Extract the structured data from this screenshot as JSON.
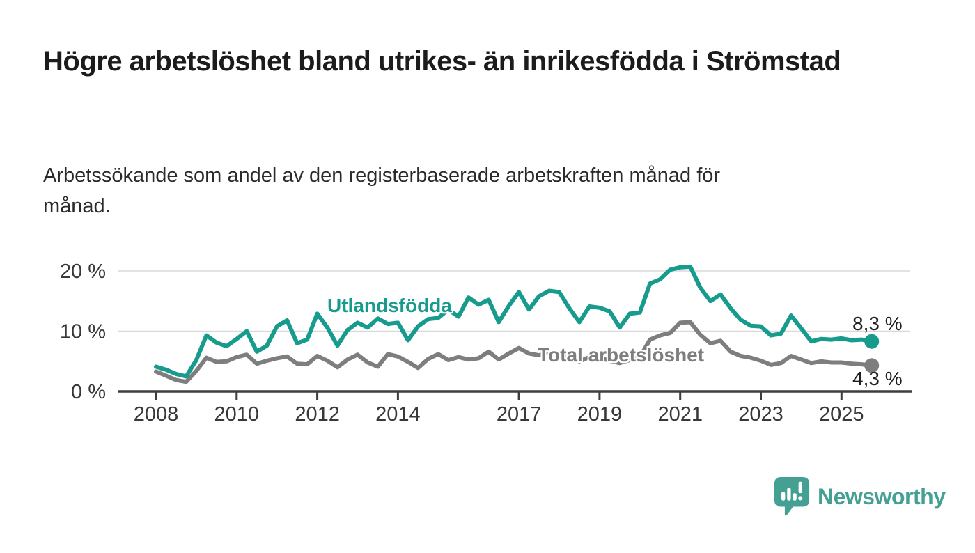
{
  "page": {
    "background": "#ffffff"
  },
  "header": {
    "title": "Högre arbetslöshet bland utrikes- än inrikesfödda i Strömstad",
    "subtitle": "Arbetssökande som andel av den registerbaserade arbetskraften månad för månad."
  },
  "chart_data": {
    "type": "line",
    "title": "",
    "xlabel": "",
    "ylabel": "",
    "grid": "horizontal-only",
    "x_axis": {
      "ticks": [
        2008,
        2010,
        2012,
        2014,
        2017,
        2019,
        2021,
        2023,
        2025
      ],
      "tick_labels": [
        "2008",
        "2010",
        "2012",
        "2014",
        "2017",
        "2019",
        "2021",
        "2023",
        "2025"
      ],
      "range": [
        2007.1,
        2026.6
      ]
    },
    "y_axis": {
      "ticks": [
        0,
        10,
        20
      ],
      "tick_labels": [
        "0 %",
        "10 %",
        "20 %"
      ],
      "range": [
        0,
        21.5
      ]
    },
    "colors": {
      "axis": "#3d3d3d",
      "gridline": "#d9d9d9",
      "tick_text": "#383838"
    },
    "series": [
      {
        "name": "Utlandsfödda",
        "color": "#169b8d",
        "end_value": 8.3,
        "end_label": "8,3 %",
        "points": [
          [
            2008.0,
            4.1
          ],
          [
            2008.25,
            3.6
          ],
          [
            2008.5,
            2.9
          ],
          [
            2008.75,
            2.5
          ],
          [
            2009.0,
            5.2
          ],
          [
            2009.25,
            9.3
          ],
          [
            2009.5,
            8.1
          ],
          [
            2009.75,
            7.5
          ],
          [
            2010.0,
            8.7
          ],
          [
            2010.25,
            10.0
          ],
          [
            2010.5,
            6.6
          ],
          [
            2010.75,
            7.6
          ],
          [
            2011.0,
            10.8
          ],
          [
            2011.25,
            11.8
          ],
          [
            2011.5,
            8.0
          ],
          [
            2011.75,
            8.6
          ],
          [
            2012.0,
            12.9
          ],
          [
            2012.25,
            10.6
          ],
          [
            2012.5,
            7.6
          ],
          [
            2012.75,
            10.2
          ],
          [
            2013.0,
            11.4
          ],
          [
            2013.25,
            10.6
          ],
          [
            2013.5,
            12.1
          ],
          [
            2013.75,
            11.2
          ],
          [
            2014.0,
            11.4
          ],
          [
            2014.25,
            8.5
          ],
          [
            2014.5,
            10.8
          ],
          [
            2014.75,
            12.0
          ],
          [
            2015.0,
            12.2
          ],
          [
            2015.25,
            13.6
          ],
          [
            2015.5,
            12.4
          ],
          [
            2015.75,
            15.6
          ],
          [
            2016.0,
            14.4
          ],
          [
            2016.25,
            15.2
          ],
          [
            2016.5,
            11.5
          ],
          [
            2016.75,
            14.2
          ],
          [
            2017.0,
            16.5
          ],
          [
            2017.25,
            13.6
          ],
          [
            2017.5,
            15.8
          ],
          [
            2017.75,
            16.7
          ],
          [
            2018.0,
            16.5
          ],
          [
            2018.25,
            13.8
          ],
          [
            2018.5,
            11.5
          ],
          [
            2018.75,
            14.1
          ],
          [
            2019.0,
            13.9
          ],
          [
            2019.25,
            13.3
          ],
          [
            2019.5,
            10.6
          ],
          [
            2019.75,
            12.9
          ],
          [
            2020.0,
            13.1
          ],
          [
            2020.25,
            17.9
          ],
          [
            2020.5,
            18.6
          ],
          [
            2020.75,
            20.2
          ],
          [
            2021.0,
            20.6
          ],
          [
            2021.25,
            20.7
          ],
          [
            2021.5,
            17.2
          ],
          [
            2021.75,
            15.0
          ],
          [
            2022.0,
            16.1
          ],
          [
            2022.25,
            13.8
          ],
          [
            2022.5,
            11.9
          ],
          [
            2022.75,
            10.9
          ],
          [
            2023.0,
            10.8
          ],
          [
            2023.25,
            9.3
          ],
          [
            2023.5,
            9.6
          ],
          [
            2023.75,
            12.6
          ],
          [
            2024.0,
            10.5
          ],
          [
            2024.25,
            8.3
          ],
          [
            2024.5,
            8.7
          ],
          [
            2024.75,
            8.6
          ],
          [
            2025.0,
            8.8
          ],
          [
            2025.25,
            8.5
          ],
          [
            2025.5,
            8.6
          ],
          [
            2025.75,
            8.3
          ]
        ]
      },
      {
        "name": "Total arbetslöshet",
        "color": "#7e7e7e",
        "end_value": 4.3,
        "end_label": "4,3 %",
        "points": [
          [
            2008.0,
            3.3
          ],
          [
            2008.25,
            2.6
          ],
          [
            2008.5,
            1.9
          ],
          [
            2008.75,
            1.6
          ],
          [
            2009.0,
            3.4
          ],
          [
            2009.25,
            5.6
          ],
          [
            2009.5,
            4.9
          ],
          [
            2009.75,
            5.0
          ],
          [
            2010.0,
            5.7
          ],
          [
            2010.25,
            6.1
          ],
          [
            2010.5,
            4.6
          ],
          [
            2010.75,
            5.1
          ],
          [
            2011.0,
            5.5
          ],
          [
            2011.25,
            5.8
          ],
          [
            2011.5,
            4.6
          ],
          [
            2011.75,
            4.5
          ],
          [
            2012.0,
            5.9
          ],
          [
            2012.25,
            5.1
          ],
          [
            2012.5,
            4.0
          ],
          [
            2012.75,
            5.3
          ],
          [
            2013.0,
            6.1
          ],
          [
            2013.25,
            4.8
          ],
          [
            2013.5,
            4.1
          ],
          [
            2013.75,
            6.2
          ],
          [
            2014.0,
            5.8
          ],
          [
            2014.25,
            4.9
          ],
          [
            2014.5,
            3.9
          ],
          [
            2014.75,
            5.4
          ],
          [
            2015.0,
            6.2
          ],
          [
            2015.25,
            5.2
          ],
          [
            2015.5,
            5.7
          ],
          [
            2015.75,
            5.3
          ],
          [
            2016.0,
            5.5
          ],
          [
            2016.25,
            6.6
          ],
          [
            2016.5,
            5.3
          ],
          [
            2016.75,
            6.3
          ],
          [
            2017.0,
            7.2
          ],
          [
            2017.25,
            6.3
          ],
          [
            2017.5,
            6.0
          ],
          [
            2017.75,
            6.5
          ],
          [
            2018.0,
            6.2
          ],
          [
            2018.25,
            5.5
          ],
          [
            2018.5,
            5.0
          ],
          [
            2018.75,
            5.7
          ],
          [
            2019.0,
            5.6
          ],
          [
            2019.25,
            5.1
          ],
          [
            2019.5,
            4.7
          ],
          [
            2019.75,
            5.2
          ],
          [
            2020.0,
            5.7
          ],
          [
            2020.25,
            8.6
          ],
          [
            2020.5,
            9.3
          ],
          [
            2020.75,
            9.7
          ],
          [
            2021.0,
            11.4
          ],
          [
            2021.25,
            11.5
          ],
          [
            2021.5,
            9.4
          ],
          [
            2021.75,
            8.0
          ],
          [
            2022.0,
            8.4
          ],
          [
            2022.25,
            6.6
          ],
          [
            2022.5,
            5.9
          ],
          [
            2022.75,
            5.6
          ],
          [
            2023.0,
            5.1
          ],
          [
            2023.25,
            4.4
          ],
          [
            2023.5,
            4.7
          ],
          [
            2023.75,
            5.9
          ],
          [
            2024.0,
            5.3
          ],
          [
            2024.25,
            4.7
          ],
          [
            2024.5,
            5.0
          ],
          [
            2024.75,
            4.8
          ],
          [
            2025.0,
            4.8
          ],
          [
            2025.25,
            4.6
          ],
          [
            2025.5,
            4.5
          ],
          [
            2025.75,
            4.3
          ]
        ]
      }
    ]
  },
  "branding": {
    "logo_text": "Newsworthy",
    "logo_color": "#45a094",
    "logo_icon": "bar-chart-speech-bubble"
  }
}
